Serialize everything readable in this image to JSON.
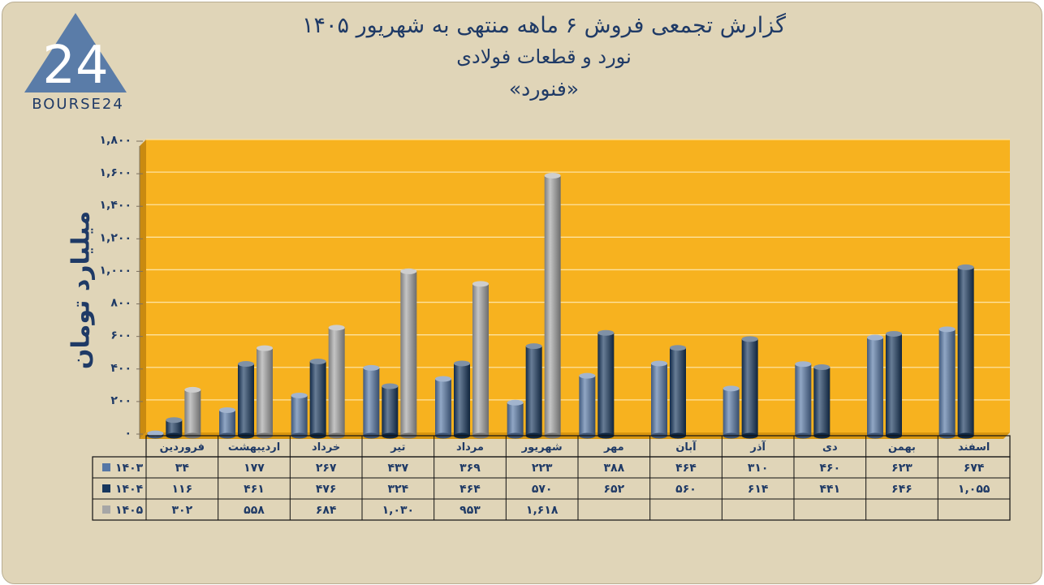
{
  "header": {
    "title_line1": "گزارش تجمعی فروش ۶ ماهه منتهی به شهریور ۱۴۰۵",
    "title_line2": "نورد و قطعات فولادی",
    "title_line3": "«فنورد»"
  },
  "logo": {
    "text": "BOURSE24",
    "mark": "24"
  },
  "colors": {
    "background": "#e0d5b8",
    "plot_area": "#f7b21f",
    "series_1403": "#5577a6",
    "series_1404": "#17375e",
    "series_1405": "#a6a6a6",
    "text": "#1f3a66"
  },
  "chart_data": {
    "type": "bar",
    "ylabel": "میلیارد تومان",
    "ylim": [
      0,
      1800
    ],
    "yticks": [
      0,
      200,
      400,
      600,
      800,
      1000,
      1200,
      1400,
      1600,
      1800
    ],
    "ytick_labels": [
      "۰",
      "۲۰۰",
      "۴۰۰",
      "۶۰۰",
      "۸۰۰",
      "۱,۰۰۰",
      "۱,۲۰۰",
      "۱,۴۰۰",
      "۱,۶۰۰",
      "۱,۸۰۰"
    ],
    "grid": true,
    "categories": [
      "فروردین",
      "اردیبهشت",
      "خرداد",
      "تیر",
      "مرداد",
      "شهریور",
      "مهر",
      "آبان",
      "آذر",
      "دی",
      "بهمن",
      "اسفند"
    ],
    "series": [
      {
        "name": "۱۴۰۳",
        "values": [
          34,
          177,
          267,
          437,
          369,
          223,
          388,
          464,
          310,
          460,
          623,
          674
        ],
        "labels": [
          "۳۴",
          "۱۷۷",
          "۲۶۷",
          "۴۳۷",
          "۳۶۹",
          "۲۲۳",
          "۳۸۸",
          "۴۶۴",
          "۳۱۰",
          "۴۶۰",
          "۶۲۳",
          "۶۷۴"
        ]
      },
      {
        "name": "۱۴۰۴",
        "values": [
          116,
          461,
          476,
          324,
          464,
          570,
          652,
          560,
          614,
          441,
          646,
          1055
        ],
        "labels": [
          "۱۱۶",
          "۴۶۱",
          "۴۷۶",
          "۳۲۴",
          "۴۶۴",
          "۵۷۰",
          "۶۵۲",
          "۵۶۰",
          "۶۱۴",
          "۴۴۱",
          "۶۴۶",
          "۱,۰۵۵"
        ]
      },
      {
        "name": "۱۴۰۵",
        "values": [
          302,
          558,
          684,
          1030,
          953,
          1618,
          null,
          null,
          null,
          null,
          null,
          null
        ],
        "labels": [
          "۳۰۲",
          "۵۵۸",
          "۶۸۴",
          "۱,۰۳۰",
          "۹۵۳",
          "۱,۶۱۸",
          "",
          "",
          "",
          "",
          "",
          ""
        ]
      }
    ]
  }
}
